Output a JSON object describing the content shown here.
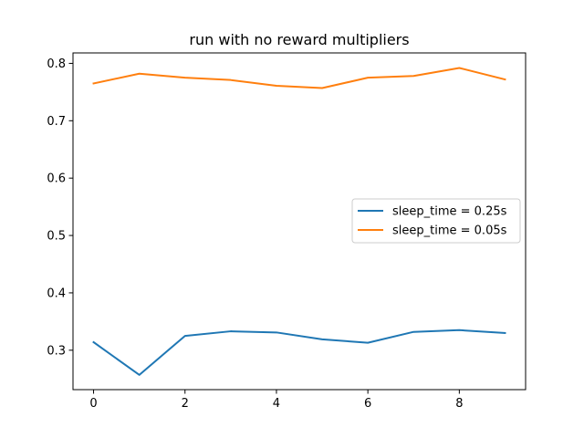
{
  "chart_data": {
    "type": "line",
    "title": "run with no reward multipliers",
    "xlabel": "",
    "ylabel": "",
    "xlim": [
      -0.45,
      9.45
    ],
    "ylim": [
      0.2313,
      0.8182
    ],
    "xticks": [
      0,
      2,
      4,
      6,
      8
    ],
    "xtick_labels": [
      "0",
      "2",
      "4",
      "6",
      "8"
    ],
    "yticks": [
      0.3,
      0.4,
      0.5,
      0.6,
      0.7,
      0.8
    ],
    "ytick_labels": [
      "0.3",
      "0.4",
      "0.5",
      "0.6",
      "0.7",
      "0.8"
    ],
    "grid": false,
    "legend_position": "center-right",
    "x": [
      0,
      1,
      2,
      3,
      4,
      5,
      6,
      7,
      8,
      9
    ],
    "series": [
      {
        "name": "sleep_time = 0.25s",
        "color": "#1f77b4",
        "values": [
          0.314,
          0.257,
          0.325,
          0.333,
          0.331,
          0.319,
          0.313,
          0.332,
          0.335,
          0.33
        ]
      },
      {
        "name": "sleep_time = 0.05s",
        "color": "#ff7f0e",
        "values": [
          0.765,
          0.782,
          0.775,
          0.771,
          0.761,
          0.757,
          0.775,
          0.778,
          0.792,
          0.772
        ]
      }
    ]
  }
}
